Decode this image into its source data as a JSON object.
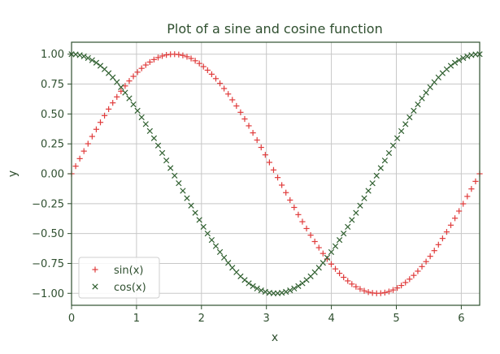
{
  "chart_data": {
    "type": "scatter",
    "title": "Plot of a sine and cosine function",
    "xlabel": "x",
    "ylabel": "y",
    "xlim": [
      0,
      6.283
    ],
    "ylim": [
      -1.1,
      1.1
    ],
    "xticks": [
      0,
      1,
      2,
      3,
      4,
      5,
      6
    ],
    "xtick_labels": [
      "0",
      "1",
      "2",
      "3",
      "4",
      "5",
      "6"
    ],
    "yticks": [
      -1.0,
      -0.75,
      -0.5,
      -0.25,
      0.0,
      0.25,
      0.5,
      0.75,
      1.0
    ],
    "ytick_labels": [
      "−1.00",
      "−0.75",
      "−0.50",
      "−0.25",
      "0.00",
      "0.25",
      "0.50",
      "0.75",
      "1.00"
    ],
    "grid": true,
    "legend_position": "lower-left",
    "colors": {
      "sin": "#e03c3c",
      "cos": "#2f5f2f",
      "frame": "#2f4f2f",
      "grid": "#c8c8c8"
    },
    "x_range": {
      "start": 0,
      "end": 6.283,
      "count": 100
    },
    "series": [
      {
        "name": "sin(x)",
        "function": "sin",
        "marker": "+",
        "color": "#e03c3c"
      },
      {
        "name": "cos(x)",
        "function": "cos",
        "marker": "x",
        "color": "#2f5f2f"
      }
    ]
  }
}
